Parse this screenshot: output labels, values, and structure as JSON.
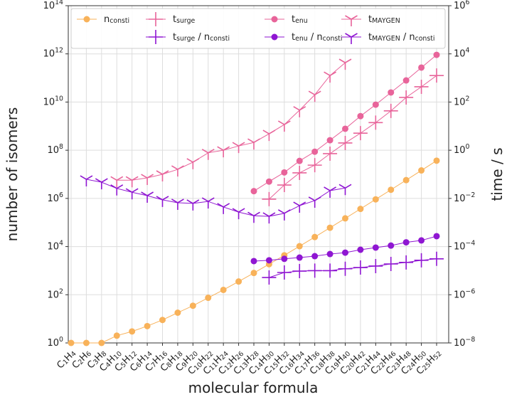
{
  "chart_data": {
    "type": "line",
    "xlabel": "molecular formula",
    "ylabel": "number of isomers",
    "y2label": "time / s",
    "yscale": "log",
    "y2scale": "log",
    "grid": true,
    "legend": "upper center",
    "categories": [
      "C_{1}H_{4}",
      "C_{2}H_{6}",
      "C_{3}H_{8}",
      "C_{4}H_{10}",
      "C_{5}H_{12}",
      "C_{6}H_{14}",
      "C_{7}H_{16}",
      "C_{8}H_{18}",
      "C_{9}H_{20}",
      "C_{10}H_{22}",
      "C_{11}H_{24}",
      "C_{12}H_{26}",
      "C_{13}H_{28}",
      "C_{14}H_{30}",
      "C_{15}H_{32}",
      "C_{16}H_{34}",
      "C_{17}H_{36}",
      "C_{18}H_{38}",
      "C_{19}H_{40}",
      "C_{20}H_{42}",
      "C_{21}H_{44}",
      "C_{22}H_{46}",
      "C_{23}H_{48}",
      "C_{24}H_{50}",
      "C_{25}H_{52}"
    ],
    "ylim": [
      1,
      100000000000000.0
    ],
    "yticks": [
      {
        "value": 1,
        "label": "10^{0}"
      },
      {
        "value": 100,
        "label": "10^{2}"
      },
      {
        "value": 10000,
        "label": "10^{4}"
      },
      {
        "value": 1000000,
        "label": "10^{6}"
      },
      {
        "value": 100000000,
        "label": "10^{8}"
      },
      {
        "value": 10000000000,
        "label": "10^{10}"
      },
      {
        "value": 1000000000000,
        "label": "10^{12}"
      },
      {
        "value": 100000000000000,
        "label": "10^{14}"
      }
    ],
    "y2lim": [
      1e-08,
      1000000.0
    ],
    "y2ticks": [
      {
        "value": 1e-08,
        "label": "10^{−8}"
      },
      {
        "value": 1e-06,
        "label": "10^{−6}"
      },
      {
        "value": 0.0001,
        "label": "10^{−4}"
      },
      {
        "value": 0.01,
        "label": "10^{−2}"
      },
      {
        "value": 1,
        "label": "10^{0}"
      },
      {
        "value": 100,
        "label": "10^{2}"
      },
      {
        "value": 10000,
        "label": "10^{4}"
      },
      {
        "value": 1000000,
        "label": "10^{6}"
      }
    ],
    "series": [
      {
        "name": "n_{consti}",
        "color": "#f8b25a",
        "marker": "circle",
        "axis": "y",
        "values": [
          1,
          1,
          1,
          2,
          3,
          5,
          9,
          18,
          35,
          75,
          159,
          355,
          802,
          1858,
          4347,
          10359,
          24894,
          60523,
          148284,
          366319,
          910726,
          2278658,
          5731580,
          14490245,
          36797588
        ]
      },
      {
        "name": "t_{surge}",
        "color": "#e8649a",
        "marker": "plus",
        "axis": "y2",
        "values": [
          null,
          null,
          null,
          null,
          null,
          null,
          null,
          null,
          null,
          null,
          null,
          null,
          null,
          0.0093,
          0.036,
          0.115,
          0.24,
          0.72,
          2,
          5.1,
          14,
          43,
          155,
          430,
          1260
        ]
      },
      {
        "name": "t_{surge} / n_{consti}",
        "color": "#8f16d2",
        "marker": "plus",
        "axis": "y2",
        "values": [
          null,
          null,
          null,
          null,
          null,
          null,
          null,
          null,
          null,
          null,
          null,
          null,
          null,
          5.2e-06,
          8.4e-06,
          9.6e-06,
          1e-05,
          1e-05,
          1.2e-05,
          1.35e-05,
          1.55e-05,
          1.9e-05,
          2.2e-05,
          2.7e-05,
          3.1e-05
        ]
      },
      {
        "name": "t_{enu}",
        "color": "#e8649a",
        "marker": "circle",
        "axis": "y2",
        "values": [
          null,
          null,
          null,
          null,
          null,
          null,
          null,
          null,
          null,
          null,
          null,
          null,
          0.02,
          0.05,
          0.12,
          0.36,
          0.87,
          2.6,
          7.8,
          26,
          78,
          250,
          790,
          2700,
          9100
        ]
      },
      {
        "name": "t_{enu} / n_{consti}",
        "color": "#8f16d2",
        "marker": "circle",
        "axis": "y2",
        "values": [
          null,
          null,
          null,
          null,
          null,
          null,
          null,
          null,
          null,
          null,
          null,
          null,
          2.5e-05,
          2.7e-05,
          3.1e-05,
          3.5e-05,
          4e-05,
          4.9e-05,
          5.6e-05,
          7.4e-05,
          9.1e-05,
          0.00011,
          0.00015,
          0.00018,
          0.00027
        ]
      },
      {
        "name": "t_{MAYGEN}",
        "color": "#e8649a",
        "marker": "tri_down",
        "axis": "y2",
        "values": [
          null,
          null,
          null,
          0.057,
          0.057,
          0.071,
          0.1,
          0.16,
          0.32,
          0.78,
          1.0,
          1.5,
          2.1,
          4.8,
          11.6,
          46,
          200,
          1260,
          4300,
          null,
          null,
          null,
          null,
          null,
          null
        ]
      },
      {
        "name": "t_{MAYGEN} / n_{consti}",
        "color": "#8f16d2",
        "marker": "tri_down",
        "axis": "y2",
        "values": [
          null,
          0.062,
          0.047,
          0.026,
          0.018,
          0.013,
          0.0087,
          0.0066,
          0.0062,
          0.0075,
          0.0044,
          0.0027,
          0.0019,
          0.0018,
          0.0024,
          0.005,
          0.0081,
          0.021,
          0.027,
          null,
          null,
          null,
          null,
          null,
          null
        ]
      }
    ]
  }
}
